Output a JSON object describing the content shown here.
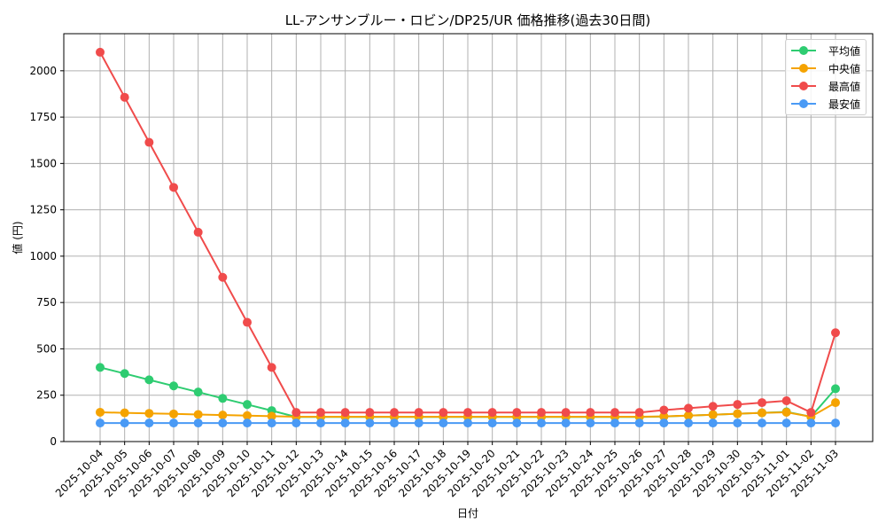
{
  "chart_data": {
    "type": "line",
    "title": "LL-アンサンブルー・ロビン/DP25/UR 価格推移(過去30日間)",
    "xlabel": "日付",
    "ylabel": "値 (円)",
    "ylim": [
      0,
      2200
    ],
    "yticks": [
      0,
      250,
      500,
      750,
      1000,
      1250,
      1500,
      1750,
      2000
    ],
    "grid": true,
    "legend_position": "upper right",
    "x": [
      "2025-10-04",
      "2025-10-05",
      "2025-10-06",
      "2025-10-07",
      "2025-10-08",
      "2025-10-09",
      "2025-10-10",
      "2025-10-11",
      "2025-10-12",
      "2025-10-13",
      "2025-10-14",
      "2025-10-15",
      "2025-10-16",
      "2025-10-17",
      "2025-10-18",
      "2025-10-19",
      "2025-10-20",
      "2025-10-21",
      "2025-10-22",
      "2025-10-23",
      "2025-10-24",
      "2025-10-25",
      "2025-10-26",
      "2025-10-27",
      "2025-10-28",
      "2025-10-29",
      "2025-10-30",
      "2025-10-31",
      "2025-11-01",
      "2025-11-02",
      "2025-11-03"
    ],
    "series": [
      {
        "name": "平均値",
        "color": "#2ecc71",
        "values": [
          400,
          367,
          333,
          300,
          267,
          233,
          200,
          167,
          133,
          133,
          133,
          133,
          133,
          133,
          133,
          133,
          133,
          133,
          133,
          133,
          133,
          133,
          133,
          135,
          140,
          145,
          150,
          155,
          160,
          134,
          285
        ]
      },
      {
        "name": "中央値",
        "color": "#f5a300",
        "values": [
          158,
          155,
          152,
          149,
          146,
          143,
          140,
          137,
          134,
          134,
          134,
          134,
          134,
          134,
          134,
          134,
          134,
          134,
          134,
          134,
          134,
          134,
          134,
          136,
          140,
          145,
          150,
          155,
          158,
          134,
          210
        ]
      },
      {
        "name": "最高値",
        "color": "#f04b4b",
        "values": [
          2100,
          1857,
          1614,
          1371,
          1129,
          886,
          643,
          400,
          157,
          157,
          157,
          157,
          157,
          157,
          157,
          157,
          157,
          157,
          157,
          157,
          157,
          157,
          157,
          170,
          180,
          190,
          200,
          210,
          220,
          157,
          587
        ]
      },
      {
        "name": "最安値",
        "color": "#4a9af5",
        "values": [
          100,
          100,
          100,
          100,
          100,
          100,
          100,
          100,
          100,
          100,
          100,
          100,
          100,
          100,
          100,
          100,
          100,
          100,
          100,
          100,
          100,
          100,
          100,
          100,
          100,
          100,
          100,
          100,
          100,
          100,
          100
        ]
      }
    ]
  }
}
